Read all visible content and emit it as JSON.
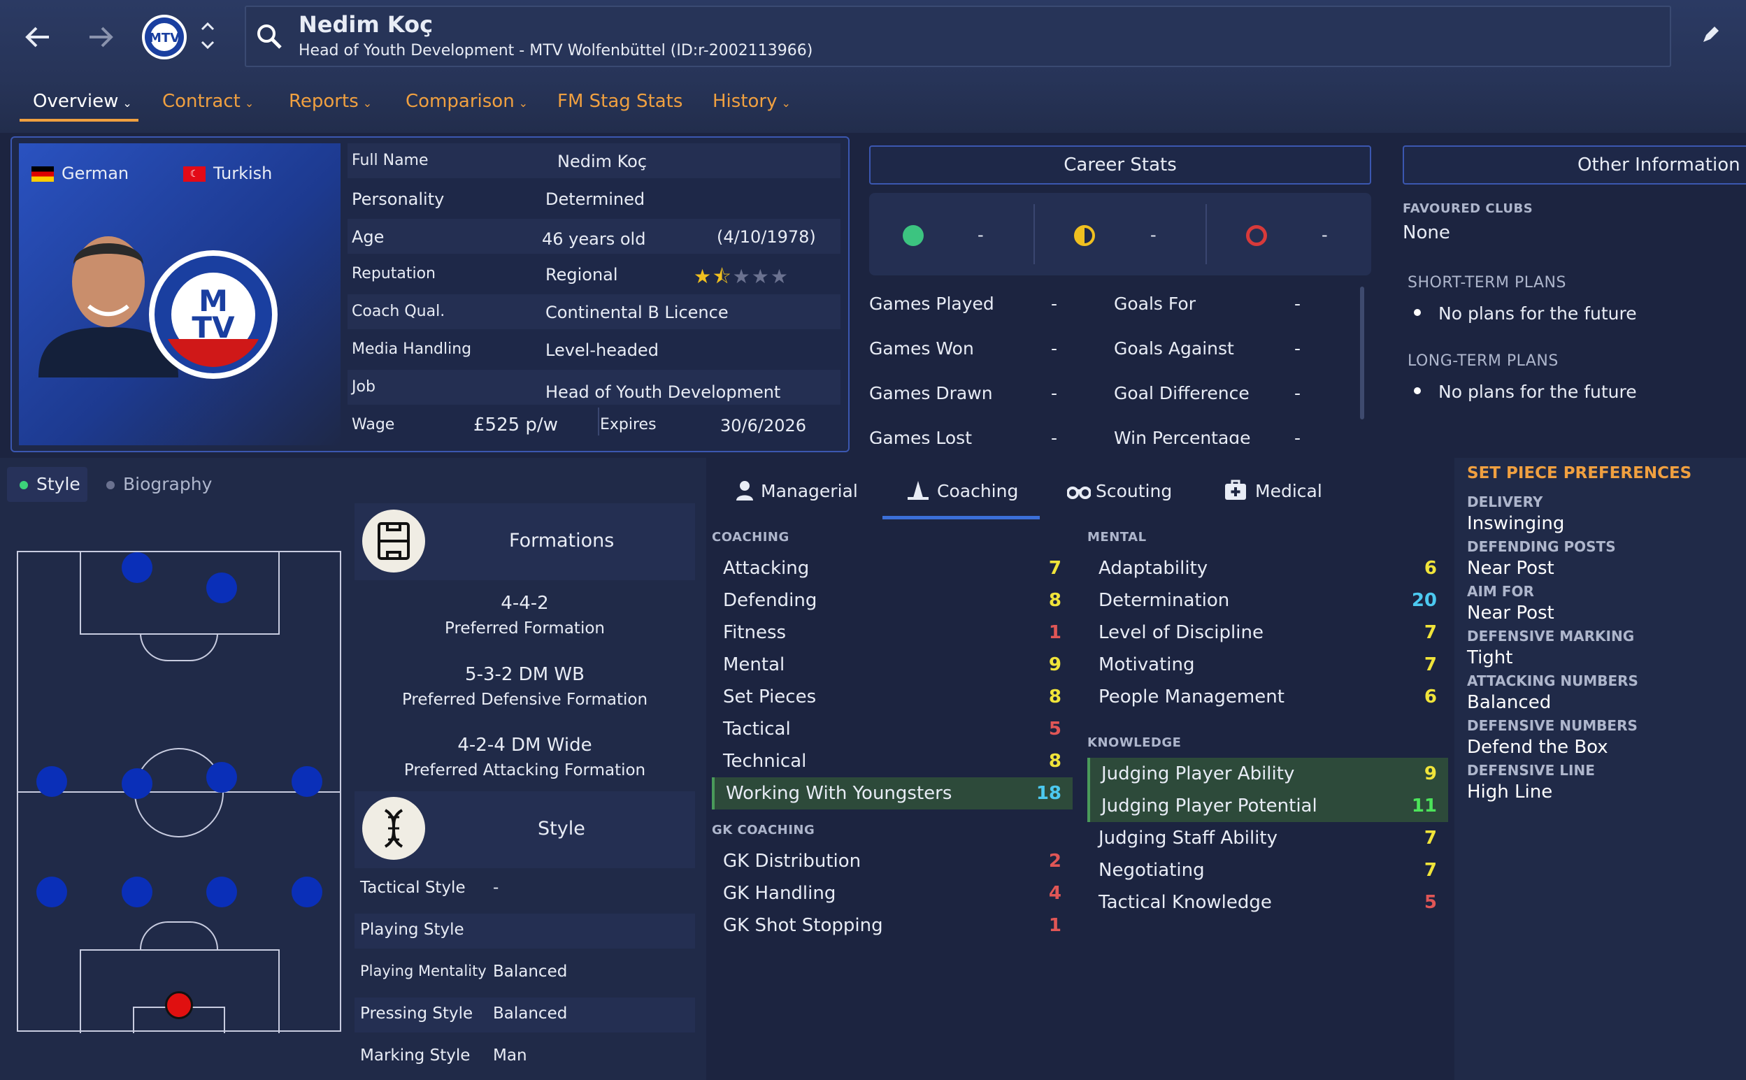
{
  "header": {
    "name": "Nedim Koç",
    "subtitle": "Head of Youth Development - MTV Wolfenbüttel (ID:r-2002113966)"
  },
  "tabs": [
    {
      "label": "Overview",
      "chevron": true
    },
    {
      "label": "Contract",
      "chevron": true
    },
    {
      "label": "Reports",
      "chevron": true
    },
    {
      "label": "Comparison",
      "chevron": true
    },
    {
      "label": "FM Stag Stats",
      "chevron": false
    },
    {
      "label": "History",
      "chevron": true
    }
  ],
  "profile": {
    "nationality1": "German",
    "nationality2": "Turkish",
    "rows": [
      {
        "label": "Full Name",
        "value": "Nedim Koç"
      },
      {
        "label": "Personality",
        "value": "Determined"
      },
      {
        "label": "Age",
        "value": "46 years old",
        "extra": "(4/10/1978)"
      },
      {
        "label": "Reputation",
        "value": "Regional",
        "stars": 1.5
      },
      {
        "label": "Coach Qual.",
        "value": "Continental B Licence"
      },
      {
        "label": "Media Handling",
        "value": "Level-headed"
      },
      {
        "label": "Job",
        "value": "Head of Youth Development"
      }
    ],
    "wage_label": "Wage",
    "wage_value": "£525 p/w",
    "expires_label": "Expires",
    "expires_value": "30/6/2026"
  },
  "career": {
    "title": "Career Stats",
    "summary": [
      "-",
      "-",
      "-"
    ],
    "left": [
      {
        "label": "Games Played",
        "value": "-"
      },
      {
        "label": "Games Won",
        "value": "-"
      },
      {
        "label": "Games Drawn",
        "value": "-"
      },
      {
        "label": "Games Lost",
        "value": "-"
      }
    ],
    "right": [
      {
        "label": "Goals For",
        "value": "-"
      },
      {
        "label": "Goals Against",
        "value": "-"
      },
      {
        "label": "Goal Difference",
        "value": "-"
      },
      {
        "label": "Win Percentage",
        "value": "-"
      }
    ]
  },
  "other": {
    "title": "Other Information",
    "favoured_label": "FAVOURED CLUBS",
    "favoured_value": "None",
    "short_label": "SHORT-TERM PLANS",
    "short_value": "No plans for the future",
    "long_label": "LONG-TERM PLANS",
    "long_value": "No plans for the future"
  },
  "subtabs": {
    "style": "Style",
    "biography": "Biography"
  },
  "formations": {
    "title": "Formations",
    "items": [
      {
        "value": "4-4-2",
        "label": "Preferred Formation"
      },
      {
        "value": "5-3-2 DM WB",
        "label": "Preferred Defensive Formation"
      },
      {
        "value": "4-2-4 DM Wide",
        "label": "Preferred Attacking Formation"
      }
    ]
  },
  "style": {
    "title": "Style",
    "rows": [
      {
        "label": "Tactical Style",
        "value": "-"
      },
      {
        "label": "Playing Style",
        "value": ""
      },
      {
        "label": "Playing Mentality",
        "value": "Balanced"
      },
      {
        "label": "Pressing Style",
        "value": "Balanced"
      },
      {
        "label": "Marking Style",
        "value": "Man"
      }
    ]
  },
  "attr_tabs": [
    "Managerial",
    "Coaching",
    "Scouting",
    "Medical"
  ],
  "coaching": {
    "label": "COACHING",
    "items": [
      {
        "name": "Attacking",
        "value": "7",
        "c": "y"
      },
      {
        "name": "Defending",
        "value": "8",
        "c": "y"
      },
      {
        "name": "Fitness",
        "value": "1",
        "c": "r"
      },
      {
        "name": "Mental",
        "value": "9",
        "c": "y"
      },
      {
        "name": "Set Pieces",
        "value": "8",
        "c": "y"
      },
      {
        "name": "Tactical",
        "value": "5",
        "c": "r"
      },
      {
        "name": "Technical",
        "value": "8",
        "c": "y"
      },
      {
        "name": "Working With Youngsters",
        "value": "18",
        "c": "c"
      }
    ]
  },
  "gk": {
    "label": "GK COACHING",
    "items": [
      {
        "name": "GK Distribution",
        "value": "2",
        "c": "r"
      },
      {
        "name": "GK Handling",
        "value": "4",
        "c": "r"
      },
      {
        "name": "GK Shot Stopping",
        "value": "1",
        "c": "r"
      }
    ]
  },
  "mental": {
    "label": "MENTAL",
    "items": [
      {
        "name": "Adaptability",
        "value": "6",
        "c": "y"
      },
      {
        "name": "Determination",
        "value": "20",
        "c": "c"
      },
      {
        "name": "Level of Discipline",
        "value": "7",
        "c": "y"
      },
      {
        "name": "Motivating",
        "value": "7",
        "c": "y"
      },
      {
        "name": "People Management",
        "value": "6",
        "c": "y"
      }
    ]
  },
  "knowledge": {
    "label": "KNOWLEDGE",
    "items": [
      {
        "name": "Judging Player Ability",
        "value": "9",
        "c": "y"
      },
      {
        "name": "Judging Player Potential",
        "value": "11",
        "c": "g"
      },
      {
        "name": "Judging Staff Ability",
        "value": "7",
        "c": "y"
      },
      {
        "name": "Negotiating",
        "value": "7",
        "c": "y"
      },
      {
        "name": "Tactical Knowledge",
        "value": "5",
        "c": "r"
      }
    ]
  },
  "setpiece": {
    "title": "SET PIECE PREFERENCES",
    "items": [
      {
        "label": "DELIVERY",
        "value": "Inswinging"
      },
      {
        "label": "DEFENDING POSTS",
        "value": "Near Post"
      },
      {
        "label": "AIM FOR",
        "value": "Near Post"
      },
      {
        "label": "DEFENSIVE MARKING",
        "value": "Tight"
      },
      {
        "label": "ATTACKING NUMBERS",
        "value": "Balanced"
      },
      {
        "label": "DEFENSIVE NUMBERS",
        "value": "Defend the Box"
      },
      {
        "label": "DEFENSIVE LINE",
        "value": "High Line"
      }
    ]
  },
  "colors": {
    "accent": "#f0a040",
    "card": "#242f52",
    "bg": "#1c2440"
  }
}
